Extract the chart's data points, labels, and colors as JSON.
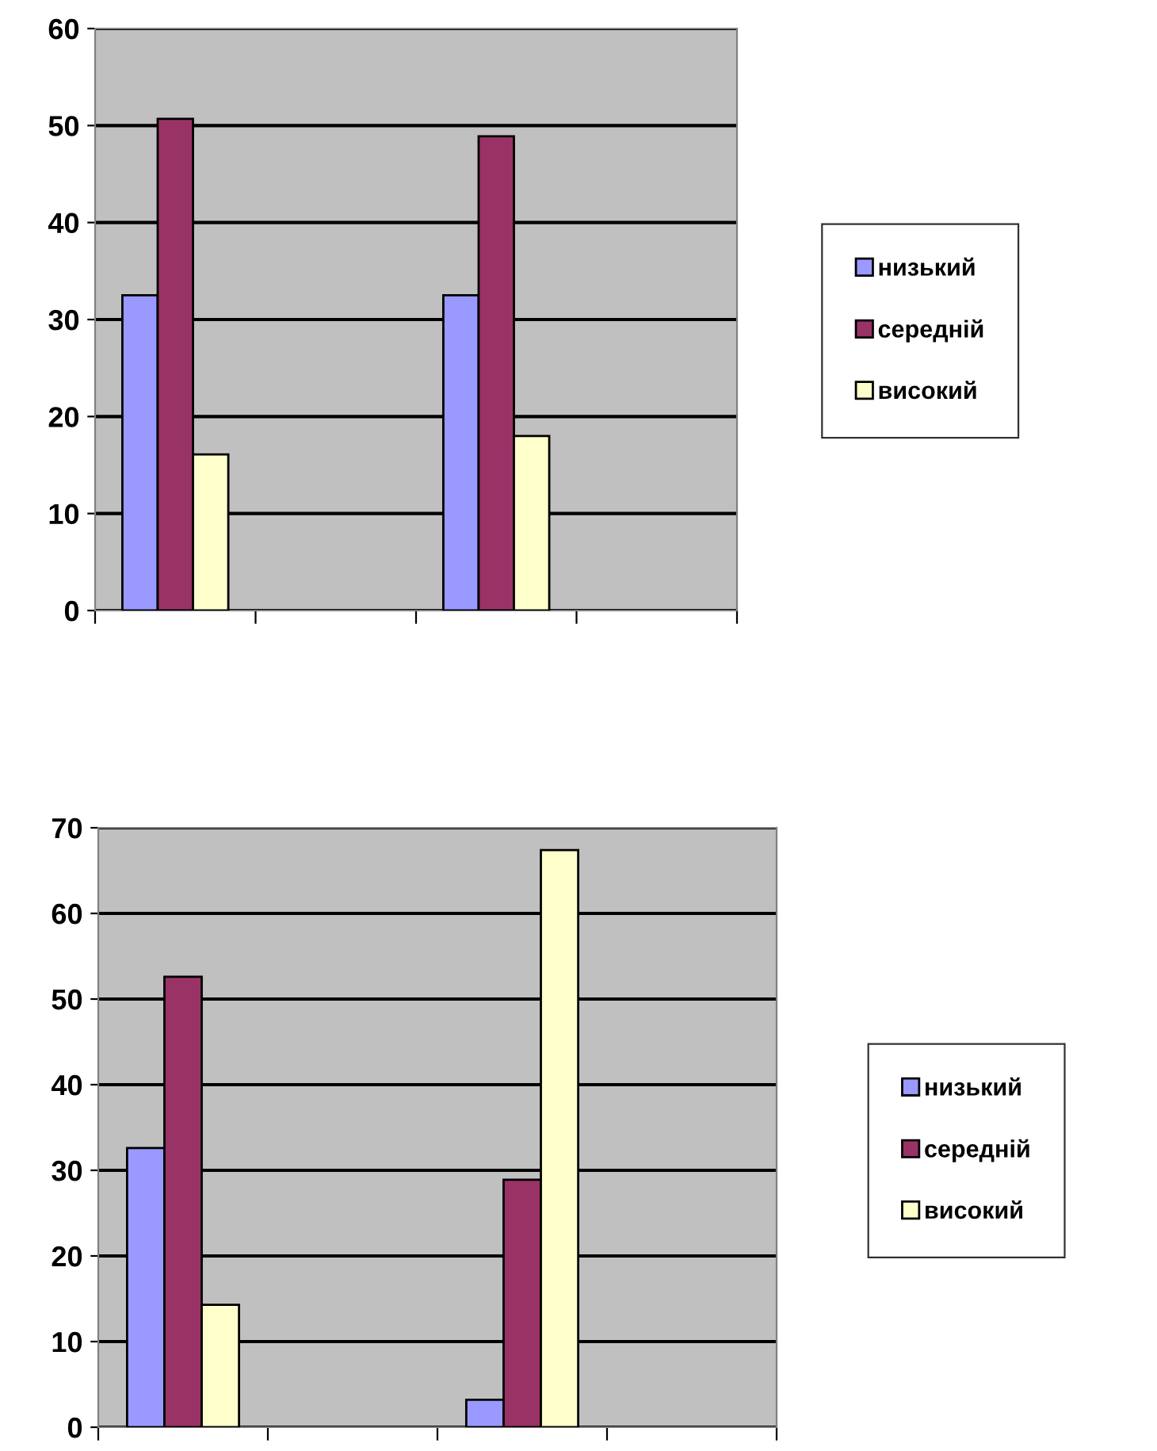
{
  "chart_data": [
    {
      "type": "bar",
      "categories": [
        null,
        null,
        null,
        null
      ],
      "ylim": [
        0,
        60
      ],
      "yticks": [
        0,
        10,
        20,
        30,
        40,
        50,
        60
      ],
      "grid": "y",
      "legend": "right",
      "tick_labels": "y",
      "series": [
        {
          "name": "низький",
          "color": "#9999ff",
          "values": [
            32.5,
            null,
            32.5,
            null
          ]
        },
        {
          "name": "середній",
          "color": "#993366",
          "values": [
            50.7,
            null,
            48.9,
            null
          ]
        },
        {
          "name": "високий",
          "color": "#ffffcc",
          "values": [
            16.1,
            null,
            18.0,
            null
          ]
        }
      ]
    },
    {
      "type": "bar",
      "categories": [
        null,
        null,
        null,
        null
      ],
      "ylim": [
        0,
        70
      ],
      "yticks": [
        0,
        10,
        20,
        30,
        40,
        50,
        60,
        70
      ],
      "grid": "y",
      "legend": "right",
      "tick_labels": "y",
      "series": [
        {
          "name": "низький",
          "color": "#9999ff",
          "values": [
            32.6,
            null,
            3.2,
            null
          ]
        },
        {
          "name": "середній",
          "color": "#993366",
          "values": [
            52.6,
            null,
            28.9,
            null
          ]
        },
        {
          "name": "високий",
          "color": "#ffffcc",
          "values": [
            14.3,
            null,
            67.4,
            null
          ]
        }
      ]
    }
  ]
}
